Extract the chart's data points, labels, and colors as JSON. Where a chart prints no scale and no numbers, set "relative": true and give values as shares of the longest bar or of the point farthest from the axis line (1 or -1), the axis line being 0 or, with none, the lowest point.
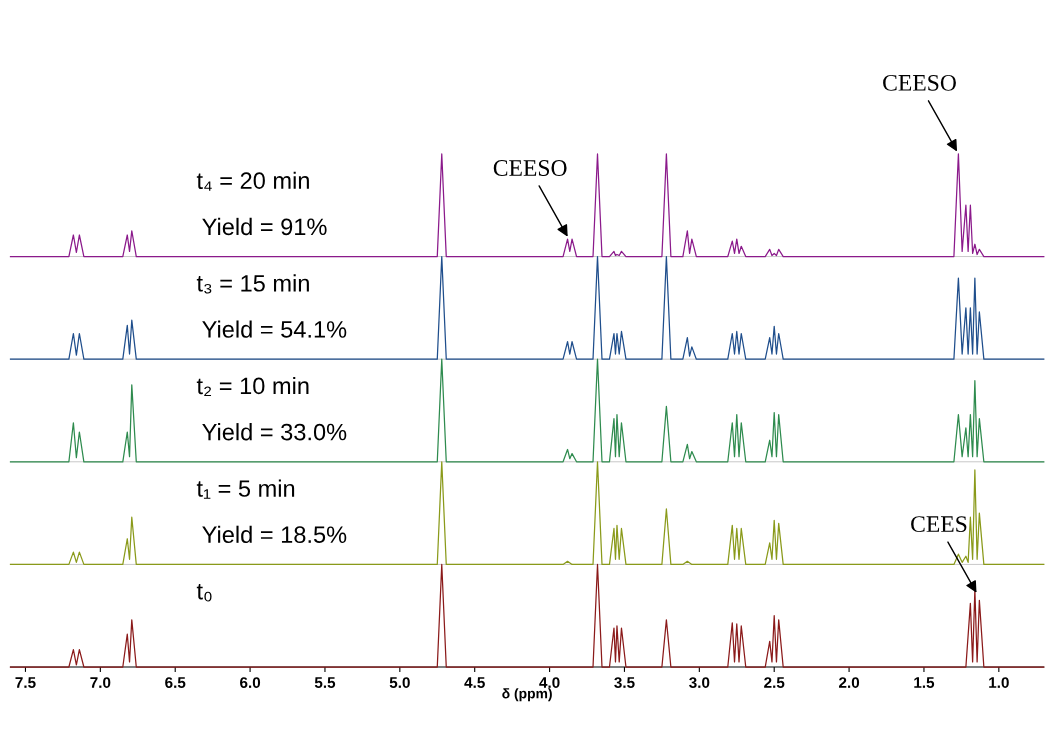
{
  "chart_data": [
    {
      "type": "line",
      "relative": true,
      "xlim": [
        7.6,
        0.7
      ],
      "tick_labels": false,
      "annotations": [
        "t₄ = 20 min",
        "Yield = 91%",
        {
          "text": "CEESO",
          "x": 3.87,
          "y": 0.17
        },
        {
          "text": "CEESO",
          "x": 1.27,
          "y": 1.0
        }
      ],
      "series": [
        {
          "color": "#8b1a8b",
          "x": [
            7.6,
            7.21,
            7.18,
            7.16,
            7.14,
            7.11,
            6.85,
            6.82,
            6.805,
            6.79,
            6.76,
            4.75,
            4.72,
            4.69,
            3.91,
            3.88,
            3.865,
            3.85,
            3.82,
            3.71,
            3.68,
            3.65,
            3.6,
            3.57,
            3.56,
            3.55,
            3.535,
            3.52,
            3.49,
            3.25,
            3.22,
            3.19,
            3.11,
            3.08,
            3.065,
            3.05,
            3.02,
            2.81,
            2.78,
            2.765,
            2.75,
            2.735,
            2.72,
            2.69,
            2.56,
            2.53,
            2.515,
            2.5,
            2.485,
            2.47,
            2.44,
            1.3,
            1.27,
            1.245,
            1.22,
            1.205,
            1.19,
            1.175,
            1.16,
            1.145,
            1.13,
            1.1,
            0.7
          ],
          "values": [
            0,
            0,
            0.21,
            0.04,
            0.21,
            0,
            0,
            0.21,
            0.05,
            0.25,
            0,
            0,
            1,
            0,
            0,
            0.17,
            0.05,
            0.17,
            0,
            0,
            1,
            0,
            0,
            0.05,
            0.01,
            0.02,
            0.01,
            0.05,
            0,
            0,
            1,
            0,
            0,
            0.25,
            0.03,
            0.17,
            0,
            0,
            0.15,
            0.03,
            0.17,
            0.03,
            0.1,
            0,
            0,
            0.07,
            0.01,
            0.03,
            0.01,
            0.07,
            0,
            0,
            1,
            0.05,
            0.5,
            0.05,
            0.5,
            0.03,
            0.12,
            0.02,
            0.07,
            0,
            0
          ]
        }
      ]
    },
    {
      "type": "line",
      "relative": true,
      "xlim": [
        7.6,
        0.7
      ],
      "tick_labels": false,
      "annotations": [
        "t₃ = 15 min",
        "Yield = 54.1%"
      ],
      "series": [
        {
          "color": "#1f4e8c",
          "x": [
            7.6,
            7.21,
            7.18,
            7.16,
            7.14,
            7.11,
            6.85,
            6.82,
            6.805,
            6.79,
            6.76,
            4.75,
            4.72,
            4.69,
            3.91,
            3.88,
            3.865,
            3.85,
            3.82,
            3.71,
            3.68,
            3.65,
            3.6,
            3.57,
            3.56,
            3.55,
            3.535,
            3.52,
            3.49,
            3.25,
            3.22,
            3.19,
            3.11,
            3.08,
            3.065,
            3.05,
            3.02,
            2.81,
            2.78,
            2.765,
            2.75,
            2.735,
            2.72,
            2.69,
            2.56,
            2.53,
            2.515,
            2.5,
            2.485,
            2.47,
            2.44,
            1.3,
            1.27,
            1.245,
            1.22,
            1.205,
            1.19,
            1.175,
            1.16,
            1.145,
            1.13,
            1.1,
            0.7
          ],
          "values": [
            0,
            0,
            0.25,
            0.04,
            0.25,
            0,
            0,
            0.33,
            0.05,
            0.38,
            0,
            0,
            1,
            0,
            0,
            0.17,
            0.05,
            0.17,
            0,
            0,
            1,
            0,
            0,
            0.25,
            0.05,
            0.25,
            0.05,
            0.27,
            0,
            0,
            1,
            0,
            0,
            0.21,
            0.03,
            0.12,
            0,
            0,
            0.25,
            0.05,
            0.27,
            0.05,
            0.25,
            0,
            0,
            0.21,
            0.05,
            0.32,
            0.05,
            0.25,
            0,
            0,
            0.79,
            0.05,
            0.5,
            0.05,
            0.5,
            0.05,
            0.79,
            0.05,
            0.46,
            0,
            0
          ]
        }
      ]
    },
    {
      "type": "line",
      "relative": true,
      "xlim": [
        7.6,
        0.7
      ],
      "tick_labels": false,
      "annotations": [
        "t₂ = 10 min",
        "Yield = 33.0%"
      ],
      "series": [
        {
          "color": "#2e8b4e",
          "x": [
            7.6,
            7.21,
            7.18,
            7.16,
            7.14,
            7.11,
            6.85,
            6.82,
            6.805,
            6.79,
            6.76,
            4.75,
            4.72,
            4.69,
            3.91,
            3.88,
            3.865,
            3.85,
            3.82,
            3.71,
            3.68,
            3.65,
            3.6,
            3.57,
            3.56,
            3.55,
            3.535,
            3.52,
            3.49,
            3.25,
            3.22,
            3.19,
            3.11,
            3.08,
            3.065,
            3.05,
            3.02,
            2.81,
            2.78,
            2.765,
            2.75,
            2.735,
            2.72,
            2.69,
            2.56,
            2.53,
            2.515,
            2.5,
            2.485,
            2.47,
            2.44,
            1.3,
            1.27,
            1.245,
            1.22,
            1.205,
            1.19,
            1.175,
            1.16,
            1.145,
            1.13,
            1.1,
            0.7
          ],
          "values": [
            0,
            0,
            0.38,
            0.04,
            0.29,
            0,
            0,
            0.29,
            0.05,
            0.75,
            0,
            0,
            1,
            0,
            0,
            0.12,
            0.03,
            0.08,
            0,
            0,
            1,
            0,
            0,
            0.42,
            0.05,
            0.46,
            0.05,
            0.38,
            0,
            0,
            0.54,
            0,
            0,
            0.17,
            0.03,
            0.1,
            0,
            0,
            0.38,
            0.05,
            0.46,
            0.05,
            0.38,
            0,
            0,
            0.21,
            0.05,
            0.48,
            0.05,
            0.46,
            0,
            0,
            0.46,
            0.05,
            0.33,
            0.05,
            0.46,
            0.05,
            0.79,
            0.05,
            0.42,
            0,
            0
          ]
        }
      ]
    },
    {
      "type": "line",
      "relative": true,
      "xlim": [
        7.6,
        0.7
      ],
      "tick_labels": false,
      "annotations": [
        "t₁ = 5 min",
        "Yield = 18.5%"
      ],
      "series": [
        {
          "color": "#8a9a1a",
          "x": [
            7.6,
            7.21,
            7.18,
            7.16,
            7.14,
            7.11,
            6.85,
            6.82,
            6.805,
            6.79,
            6.76,
            4.75,
            4.72,
            4.69,
            3.91,
            3.88,
            3.85,
            3.71,
            3.68,
            3.65,
            3.6,
            3.57,
            3.56,
            3.55,
            3.535,
            3.52,
            3.49,
            3.25,
            3.22,
            3.19,
            3.11,
            3.08,
            3.05,
            2.81,
            2.78,
            2.765,
            2.75,
            2.735,
            2.72,
            2.69,
            2.56,
            2.53,
            2.515,
            2.5,
            2.485,
            2.47,
            2.44,
            1.3,
            1.27,
            1.245,
            1.22,
            1.205,
            1.19,
            1.175,
            1.16,
            1.145,
            1.13,
            1.1,
            0.7
          ],
          "values": [
            0,
            0,
            0.12,
            0.02,
            0.12,
            0,
            0,
            0.25,
            0.05,
            0.46,
            0,
            0,
            1,
            0,
            0,
            0.03,
            0,
            0,
            1,
            0,
            0,
            0.35,
            0.05,
            0.38,
            0.05,
            0.35,
            0,
            0,
            0.54,
            0,
            0,
            0.03,
            0,
            0,
            0.38,
            0.05,
            0.35,
            0.05,
            0.35,
            0,
            0,
            0.21,
            0.05,
            0.43,
            0.05,
            0.4,
            0,
            0,
            0.1,
            0.02,
            0.08,
            0.02,
            0.46,
            0.05,
            0.92,
            0.05,
            0.5,
            0,
            0
          ]
        }
      ]
    },
    {
      "type": "line",
      "relative": true,
      "xlim": [
        7.6,
        0.7
      ],
      "tick_labels": "x",
      "xlabel": "δ (ppm)",
      "xticks": [
        7.5,
        {
          "value": 7,
          "label": "7.0"
        },
        6.5,
        {
          "value": 6,
          "label": "6.0"
        },
        5.5,
        {
          "value": 5,
          "label": "5.0"
        },
        4.5,
        {
          "value": 4,
          "label": "4.0"
        },
        3.5,
        {
          "value": 3,
          "label": "3.0"
        },
        2.5,
        {
          "value": 2,
          "label": "2.0"
        },
        1.5,
        {
          "value": 1,
          "label": "1.0"
        }
      ],
      "annotations": [
        "t₀",
        {
          "text": "CEES",
          "x": 1.14,
          "y": 0.7
        }
      ],
      "series": [
        {
          "color": "#8b1a1a",
          "x": [
            7.6,
            7.21,
            7.18,
            7.16,
            7.14,
            7.11,
            6.85,
            6.82,
            6.805,
            6.79,
            6.76,
            4.75,
            4.72,
            4.69,
            3.71,
            3.68,
            3.65,
            3.6,
            3.57,
            3.56,
            3.55,
            3.535,
            3.52,
            3.49,
            3.25,
            3.22,
            3.19,
            2.81,
            2.78,
            2.765,
            2.75,
            2.735,
            2.72,
            2.69,
            2.56,
            2.53,
            2.515,
            2.5,
            2.485,
            2.47,
            2.44,
            1.22,
            1.19,
            1.175,
            1.16,
            1.145,
            1.13,
            1.1,
            0.7
          ],
          "values": [
            0,
            0,
            0.17,
            0.02,
            0.17,
            0,
            0,
            0.32,
            0.05,
            0.46,
            0,
            0,
            1,
            0,
            0,
            1,
            0,
            0,
            0.38,
            0.05,
            0.4,
            0.05,
            0.38,
            0,
            0,
            0.46,
            0,
            0,
            0.43,
            0.05,
            0.42,
            0.05,
            0.4,
            0,
            0,
            0.25,
            0.05,
            0.5,
            0.05,
            0.46,
            0,
            0,
            0.62,
            0.05,
            0.75,
            0.05,
            0.65,
            0,
            0
          ]
        }
      ]
    }
  ]
}
